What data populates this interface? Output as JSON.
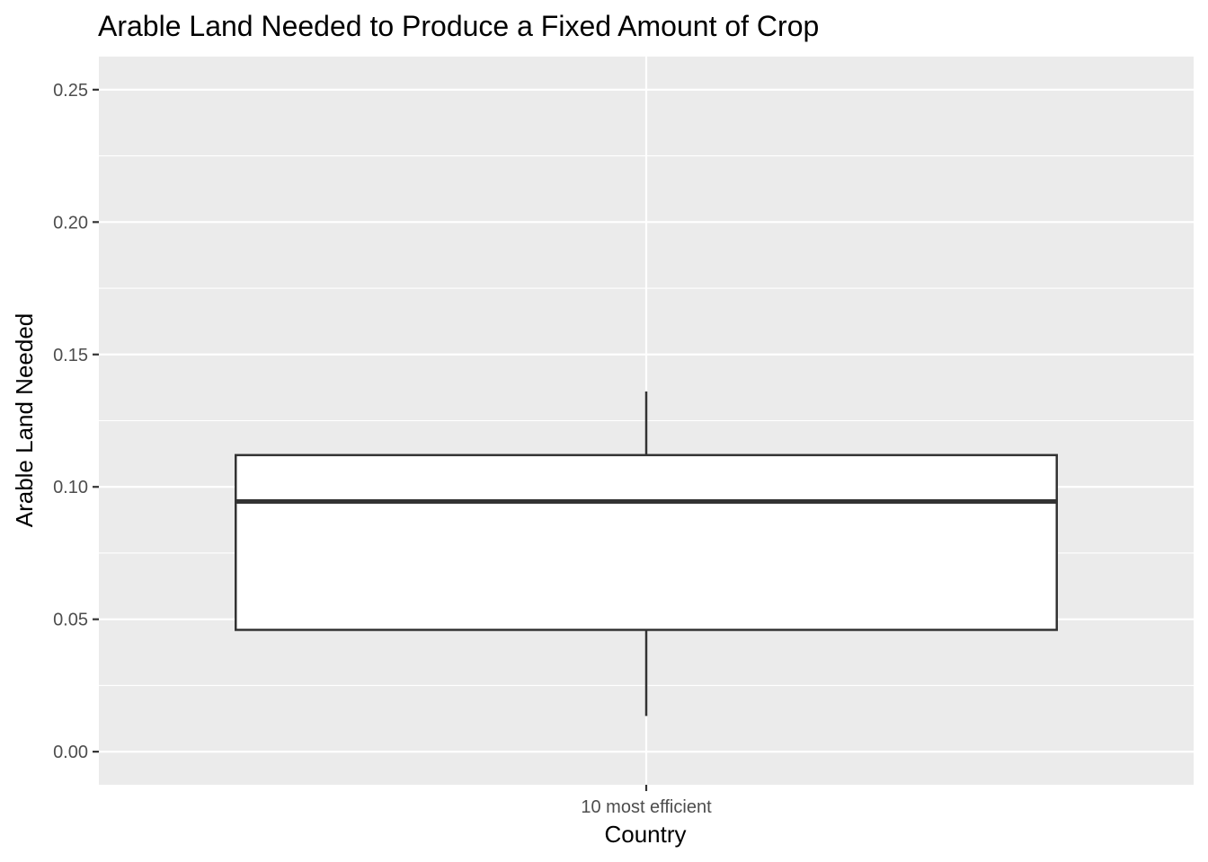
{
  "chart_data": {
    "type": "boxplot",
    "title": "Arable Land Needed to Produce a Fixed Amount of Crop",
    "xlabel": "Country",
    "ylabel": "Arable Land Needed",
    "categories": [
      "10 most efficient"
    ],
    "boxes": [
      {
        "category": "10 most efficient",
        "whisker_low": 0.0135,
        "q1": 0.046,
        "median": 0.0945,
        "q3": 0.112,
        "whisker_high": 0.136
      }
    ],
    "yticks": [
      0.0,
      0.05,
      0.1,
      0.15,
      0.2,
      0.25
    ],
    "ytick_labels": [
      "0.00",
      "0.05",
      "0.10",
      "0.15",
      "0.20",
      "0.25"
    ],
    "ylim": [
      -0.0125,
      0.2625
    ],
    "grid": true,
    "legend": "none",
    "colors": {
      "panel": "#ebebeb",
      "grid": "#ffffff",
      "box_fill": "#ffffff",
      "box_stroke": "#333333"
    }
  }
}
